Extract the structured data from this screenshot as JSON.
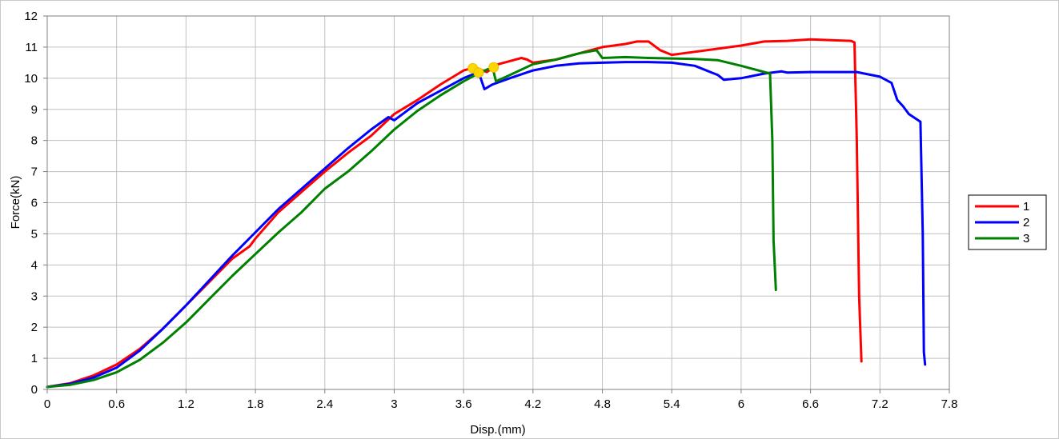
{
  "chart_data": {
    "type": "line",
    "xlabel": "Disp.(mm)",
    "ylabel": "Force(kN)",
    "xlim": [
      0,
      7.8
    ],
    "ylim": [
      0,
      12
    ],
    "xticks": [
      "0",
      "0.6",
      "1.2",
      "1.8",
      "2.4",
      "3",
      "3.6",
      "4.2",
      "4.8",
      "5.4",
      "6",
      "6.6",
      "7.2",
      "7.8"
    ],
    "yticks": [
      "0",
      "1",
      "2",
      "3",
      "4",
      "5",
      "6",
      "7",
      "8",
      "9",
      "10",
      "11",
      "12"
    ],
    "grid": true,
    "legend_position": "right",
    "series": [
      {
        "name": "1",
        "color": "#ff0000",
        "points": [
          [
            0,
            0.08
          ],
          [
            0.2,
            0.2
          ],
          [
            0.4,
            0.45
          ],
          [
            0.6,
            0.8
          ],
          [
            0.8,
            1.3
          ],
          [
            1.0,
            1.95
          ],
          [
            1.2,
            2.7
          ],
          [
            1.4,
            3.45
          ],
          [
            1.6,
            4.2
          ],
          [
            1.75,
            4.6
          ],
          [
            1.8,
            4.85
          ],
          [
            2.0,
            5.7
          ],
          [
            2.2,
            6.35
          ],
          [
            2.4,
            7.0
          ],
          [
            2.6,
            7.6
          ],
          [
            2.8,
            8.15
          ],
          [
            3.0,
            8.85
          ],
          [
            3.2,
            9.3
          ],
          [
            3.4,
            9.8
          ],
          [
            3.6,
            10.25
          ],
          [
            3.7,
            10.35
          ],
          [
            3.8,
            10.2
          ],
          [
            3.9,
            10.45
          ],
          [
            4.0,
            10.55
          ],
          [
            4.1,
            10.65
          ],
          [
            4.15,
            10.6
          ],
          [
            4.2,
            10.5
          ],
          [
            4.4,
            10.6
          ],
          [
            4.6,
            10.8
          ],
          [
            4.8,
            11.0
          ],
          [
            5.0,
            11.1
          ],
          [
            5.1,
            11.18
          ],
          [
            5.2,
            11.18
          ],
          [
            5.3,
            10.9
          ],
          [
            5.4,
            10.75
          ],
          [
            5.5,
            10.8
          ],
          [
            5.8,
            10.95
          ],
          [
            6.0,
            11.05
          ],
          [
            6.2,
            11.18
          ],
          [
            6.4,
            11.2
          ],
          [
            6.6,
            11.25
          ],
          [
            6.8,
            11.22
          ],
          [
            6.95,
            11.2
          ],
          [
            6.98,
            11.15
          ],
          [
            7.0,
            8.0
          ],
          [
            7.02,
            3.0
          ],
          [
            7.04,
            0.9
          ]
        ]
      },
      {
        "name": "2",
        "color": "#0000ff",
        "points": [
          [
            0,
            0.08
          ],
          [
            0.2,
            0.18
          ],
          [
            0.4,
            0.38
          ],
          [
            0.6,
            0.7
          ],
          [
            0.8,
            1.25
          ],
          [
            1.0,
            1.95
          ],
          [
            1.2,
            2.7
          ],
          [
            1.4,
            3.5
          ],
          [
            1.6,
            4.3
          ],
          [
            1.8,
            5.05
          ],
          [
            2.0,
            5.8
          ],
          [
            2.2,
            6.45
          ],
          [
            2.4,
            7.1
          ],
          [
            2.6,
            7.75
          ],
          [
            2.8,
            8.35
          ],
          [
            2.95,
            8.75
          ],
          [
            3.0,
            8.65
          ],
          [
            3.2,
            9.2
          ],
          [
            3.4,
            9.6
          ],
          [
            3.6,
            10.0
          ],
          [
            3.73,
            10.2
          ],
          [
            3.78,
            9.65
          ],
          [
            3.85,
            9.8
          ],
          [
            4.0,
            10.0
          ],
          [
            4.2,
            10.25
          ],
          [
            4.4,
            10.4
          ],
          [
            4.6,
            10.48
          ],
          [
            4.8,
            10.5
          ],
          [
            5.0,
            10.52
          ],
          [
            5.2,
            10.52
          ],
          [
            5.4,
            10.5
          ],
          [
            5.6,
            10.4
          ],
          [
            5.8,
            10.1
          ],
          [
            5.85,
            9.95
          ],
          [
            6.0,
            10.0
          ],
          [
            6.2,
            10.15
          ],
          [
            6.35,
            10.22
          ],
          [
            6.4,
            10.18
          ],
          [
            6.6,
            10.2
          ],
          [
            7.0,
            10.2
          ],
          [
            7.2,
            10.05
          ],
          [
            7.3,
            9.85
          ],
          [
            7.35,
            9.3
          ],
          [
            7.4,
            9.1
          ],
          [
            7.45,
            8.85
          ],
          [
            7.55,
            8.6
          ],
          [
            7.57,
            5.0
          ],
          [
            7.58,
            1.2
          ],
          [
            7.59,
            0.8
          ]
        ]
      },
      {
        "name": "3",
        "color": "#008000",
        "points": [
          [
            0,
            0.08
          ],
          [
            0.2,
            0.15
          ],
          [
            0.4,
            0.3
          ],
          [
            0.6,
            0.55
          ],
          [
            0.8,
            0.95
          ],
          [
            1.0,
            1.5
          ],
          [
            1.2,
            2.15
          ],
          [
            1.4,
            2.9
          ],
          [
            1.6,
            3.65
          ],
          [
            1.8,
            4.35
          ],
          [
            2.0,
            5.05
          ],
          [
            2.2,
            5.7
          ],
          [
            2.4,
            6.45
          ],
          [
            2.6,
            7.0
          ],
          [
            2.8,
            7.65
          ],
          [
            3.0,
            8.35
          ],
          [
            3.2,
            8.95
          ],
          [
            3.4,
            9.45
          ],
          [
            3.6,
            9.9
          ],
          [
            3.75,
            10.2
          ],
          [
            3.85,
            10.35
          ],
          [
            3.88,
            9.9
          ],
          [
            4.0,
            10.1
          ],
          [
            4.2,
            10.45
          ],
          [
            4.4,
            10.6
          ],
          [
            4.6,
            10.8
          ],
          [
            4.75,
            10.9
          ],
          [
            4.8,
            10.65
          ],
          [
            5.0,
            10.68
          ],
          [
            5.2,
            10.65
          ],
          [
            5.6,
            10.62
          ],
          [
            5.8,
            10.58
          ],
          [
            6.0,
            10.4
          ],
          [
            6.1,
            10.3
          ],
          [
            6.25,
            10.15
          ],
          [
            6.27,
            8.0
          ],
          [
            6.28,
            4.8
          ],
          [
            6.3,
            3.2
          ]
        ]
      }
    ],
    "markers": [
      {
        "x": 3.68,
        "y": 10.32,
        "color": "#ffd700"
      },
      {
        "x": 3.73,
        "y": 10.18,
        "color": "#ffd700"
      },
      {
        "x": 3.86,
        "y": 10.35,
        "color": "#ffd700"
      }
    ]
  }
}
